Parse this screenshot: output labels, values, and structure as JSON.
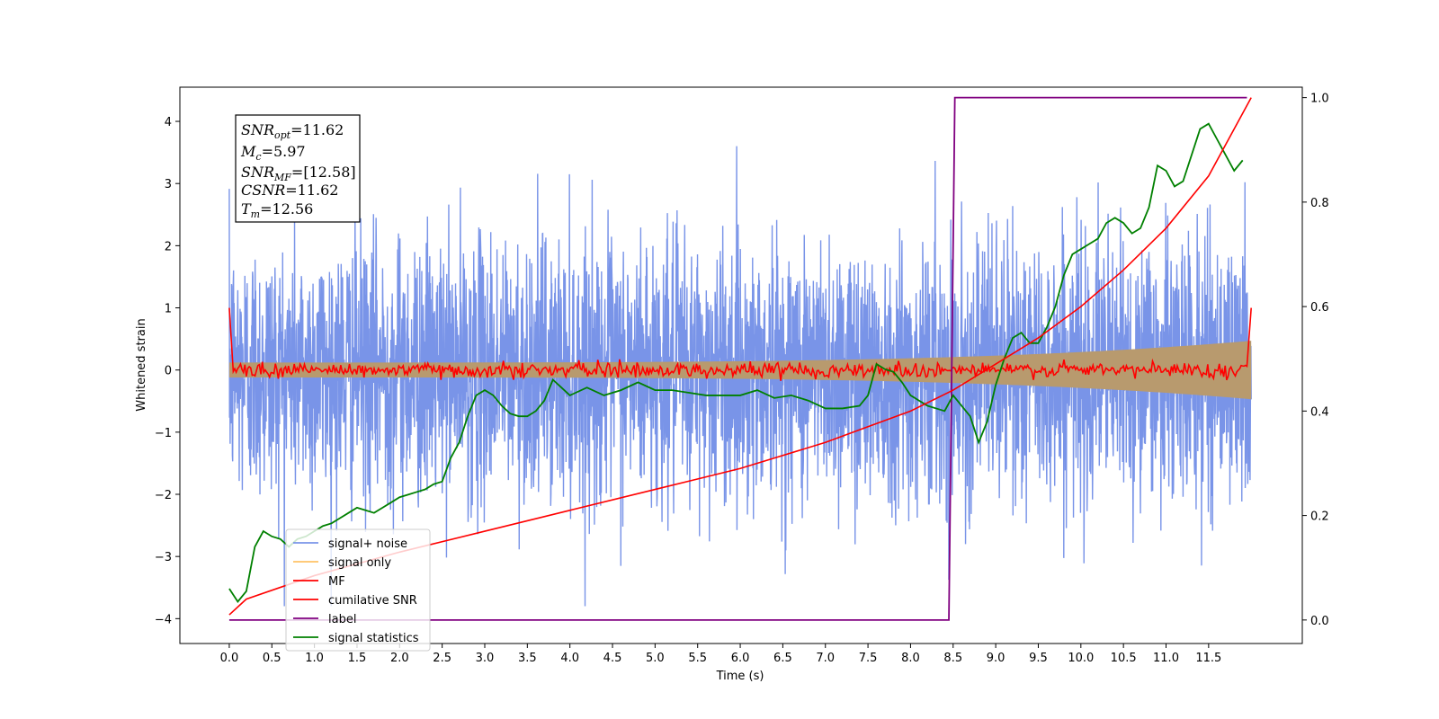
{
  "chart_data": {
    "type": "line",
    "title": "",
    "xlabel": "Time (s)",
    "ylabel": "Whitened strain",
    "xlim": [
      -0.58,
      12.6
    ],
    "ylim": [
      -4.4,
      4.55
    ],
    "y2lim": [
      -0.045,
      1.02
    ],
    "x_ticks": [
      "0.0",
      "0.5",
      "1.0",
      "1.5",
      "2.0",
      "2.5",
      "3.0",
      "3.5",
      "4.0",
      "4.5",
      "5.0",
      "5.5",
      "6.0",
      "6.5",
      "7.0",
      "7.5",
      "8.0",
      "8.5",
      "9.0",
      "9.5",
      "10.0",
      "10.5",
      "11.0",
      "11.5"
    ],
    "y_ticks": [
      "4",
      "3",
      "2",
      "1",
      "0",
      "-1",
      "-2",
      "-3",
      "-4"
    ],
    "y2_ticks": [
      "1.0",
      "0.8",
      "0.6",
      "0.4",
      "0.2",
      "0.0"
    ],
    "grid": false,
    "legend_position": "lower-left",
    "annotation": {
      "snr_opt": {
        "sym": "SNR",
        "sub": "opt",
        "val": "=11.62"
      },
      "mc": {
        "sym": "M",
        "sub": "c",
        "val": "=5.97"
      },
      "snr_mf": {
        "sym": "SNR",
        "sub": "MF",
        "val": "=[12.58]"
      },
      "csnr": {
        "sym": "CSNR",
        "sub": "",
        "val": "=11.62"
      },
      "tm": {
        "sym": "T",
        "sub": "m",
        "val": "=12.56"
      }
    },
    "series": [
      {
        "name": "signal+ noise",
        "color": "#7994e8",
        "axis": "left",
        "style": "noise",
        "x_range": [
          0.0,
          12.0
        ],
        "envelope_max": 4.15,
        "envelope_min": -3.8
      },
      {
        "name": "signal only",
        "color": "#ffc266",
        "axis": "left",
        "style": "chirp",
        "x_range": [
          0.0,
          12.0
        ],
        "amplitude_start": 0.12,
        "amplitude_end": 0.47
      },
      {
        "name": "MF",
        "color": "#ff0000",
        "axis": "left",
        "style": "mf",
        "x": [
          0.0,
          0.03,
          12.0
        ],
        "y": [
          1.0,
          0.0,
          1.0
        ],
        "noise_level": 0.06
      },
      {
        "name": "cumilative SNR",
        "color": "#ff0000",
        "axis": "right",
        "x": [
          0.0,
          0.2,
          1.0,
          2.0,
          3.0,
          4.0,
          5.0,
          6.0,
          7.0,
          7.5,
          8.0,
          8.5,
          9.0,
          9.5,
          10.0,
          10.5,
          11.0,
          11.5,
          12.0
        ],
        "y": [
          0.01,
          0.04,
          0.085,
          0.13,
          0.17,
          0.21,
          0.25,
          0.29,
          0.34,
          0.37,
          0.4,
          0.44,
          0.49,
          0.54,
          0.6,
          0.67,
          0.75,
          0.85,
          1.0
        ]
      },
      {
        "name": "label",
        "color": "#800080",
        "axis": "right",
        "x": [
          0.0,
          8.45,
          8.52,
          11.95
        ],
        "y": [
          0.0,
          0.0,
          1.0,
          1.0
        ]
      },
      {
        "name": "signal statistics",
        "color": "#008000",
        "axis": "right",
        "x": [
          0.0,
          0.1,
          0.2,
          0.3,
          0.4,
          0.5,
          0.6,
          0.7,
          0.8,
          0.9,
          1.0,
          1.1,
          1.2,
          1.3,
          1.4,
          1.5,
          1.6,
          1.7,
          1.8,
          1.9,
          2.0,
          2.1,
          2.2,
          2.3,
          2.4,
          2.5,
          2.6,
          2.7,
          2.8,
          2.9,
          3.0,
          3.1,
          3.2,
          3.3,
          3.4,
          3.5,
          3.6,
          3.7,
          3.8,
          3.9,
          4.0,
          4.2,
          4.4,
          4.6,
          4.8,
          5.0,
          5.2,
          5.4,
          5.6,
          5.8,
          6.0,
          6.2,
          6.4,
          6.6,
          6.8,
          7.0,
          7.2,
          7.4,
          7.5,
          7.6,
          7.7,
          7.8,
          7.9,
          8.0,
          8.1,
          8.2,
          8.3,
          8.4,
          8.5,
          8.6,
          8.7,
          8.8,
          8.9,
          9.0,
          9.1,
          9.2,
          9.3,
          9.4,
          9.5,
          9.6,
          9.7,
          9.8,
          9.9,
          10.0,
          10.1,
          10.2,
          10.3,
          10.4,
          10.5,
          10.6,
          10.7,
          10.8,
          10.9,
          11.0,
          11.1,
          11.2,
          11.3,
          11.4,
          11.5,
          11.6,
          11.7,
          11.8,
          11.9
        ],
        "y": [
          0.06,
          0.035,
          0.055,
          0.14,
          0.17,
          0.16,
          0.155,
          0.14,
          0.155,
          0.16,
          0.17,
          0.18,
          0.185,
          0.195,
          0.205,
          0.215,
          0.21,
          0.205,
          0.215,
          0.225,
          0.235,
          0.24,
          0.245,
          0.25,
          0.26,
          0.265,
          0.31,
          0.34,
          0.39,
          0.43,
          0.44,
          0.43,
          0.41,
          0.395,
          0.39,
          0.39,
          0.4,
          0.42,
          0.46,
          0.445,
          0.43,
          0.445,
          0.43,
          0.44,
          0.455,
          0.44,
          0.44,
          0.435,
          0.43,
          0.43,
          0.43,
          0.44,
          0.425,
          0.43,
          0.42,
          0.405,
          0.405,
          0.41,
          0.43,
          0.49,
          0.48,
          0.475,
          0.455,
          0.43,
          0.42,
          0.41,
          0.405,
          0.4,
          0.43,
          0.41,
          0.39,
          0.34,
          0.38,
          0.45,
          0.5,
          0.54,
          0.55,
          0.53,
          0.53,
          0.56,
          0.6,
          0.66,
          0.7,
          0.71,
          0.72,
          0.73,
          0.76,
          0.77,
          0.76,
          0.74,
          0.75,
          0.79,
          0.87,
          0.86,
          0.83,
          0.84,
          0.89,
          0.94,
          0.95,
          0.92,
          0.89,
          0.86,
          0.88
        ]
      }
    ]
  }
}
